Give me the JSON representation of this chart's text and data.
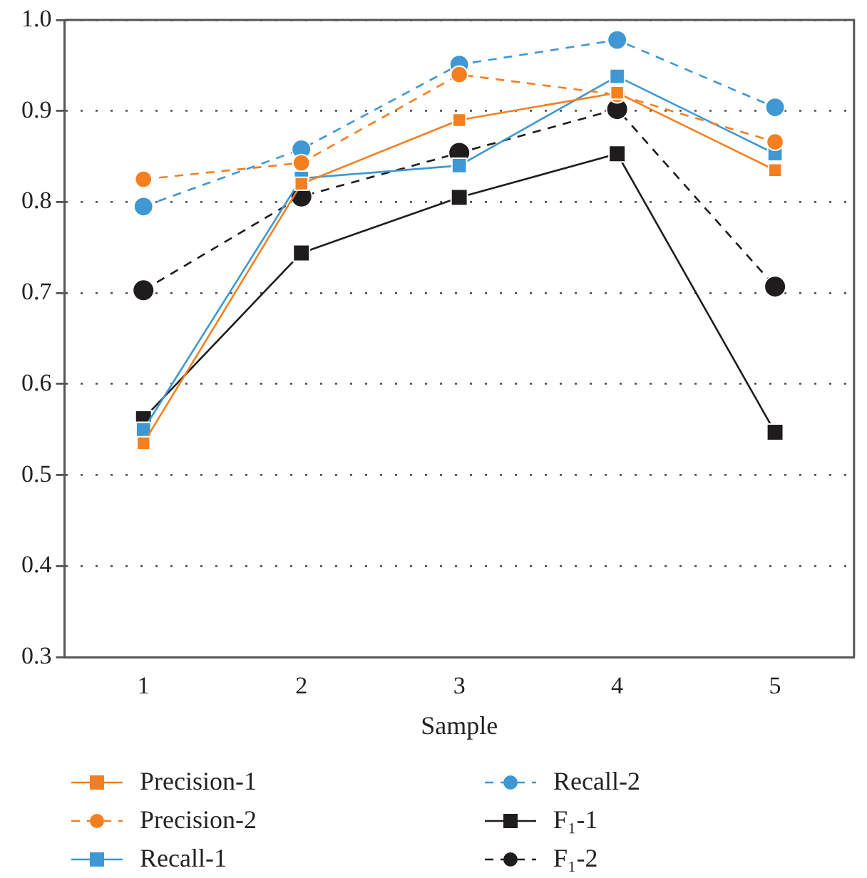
{
  "chart_data": {
    "type": "line",
    "xlabel": "Sample",
    "categories": [
      "1",
      "2",
      "3",
      "4",
      "5"
    ],
    "ylim": [
      0.3,
      1.0
    ],
    "yticks": [
      {
        "value": 0.3,
        "label": "0.3"
      },
      {
        "value": 0.4,
        "label": "0.4"
      },
      {
        "value": 0.5,
        "label": "0.5"
      },
      {
        "value": 0.6,
        "label": "0.6"
      },
      {
        "value": 0.7,
        "label": "0.7"
      },
      {
        "value": 0.8,
        "label": "0.8"
      },
      {
        "value": 0.9,
        "label": "0.9"
      },
      {
        "value": 1.0,
        "label": "1.0"
      }
    ],
    "grid": "y",
    "legend": "bottom",
    "series": [
      {
        "name": "Precision-1",
        "color": "#f47f20",
        "marker": "square",
        "line_style": "solid",
        "values": [
          0.535,
          0.82,
          0.89,
          0.92,
          0.835
        ]
      },
      {
        "name": "Precision-2",
        "color": "#f47f20",
        "marker": "circle",
        "line_style": "dashed",
        "values": [
          0.825,
          0.843,
          0.94,
          0.918,
          0.866
        ]
      },
      {
        "name": "Recall-1",
        "color": "#3f97d3",
        "marker": "square",
        "line_style": "solid",
        "values": [
          0.55,
          0.826,
          0.84,
          0.938,
          0.853
        ]
      },
      {
        "name": "Recall-2",
        "color": "#3f97d3",
        "marker": "circle",
        "line_style": "dashed",
        "values": [
          0.795,
          0.858,
          0.951,
          0.978,
          0.904
        ]
      },
      {
        "name": "F₁-1",
        "color": "#1e1c1c",
        "marker": "square",
        "line_style": "solid",
        "values": [
          0.562,
          0.744,
          0.805,
          0.853,
          0.547
        ]
      },
      {
        "name": "F₁-2",
        "color": "#1e1c1c",
        "marker": "circle",
        "line_style": "dashed",
        "values": [
          0.703,
          0.806,
          0.854,
          0.902,
          0.707
        ]
      }
    ]
  }
}
